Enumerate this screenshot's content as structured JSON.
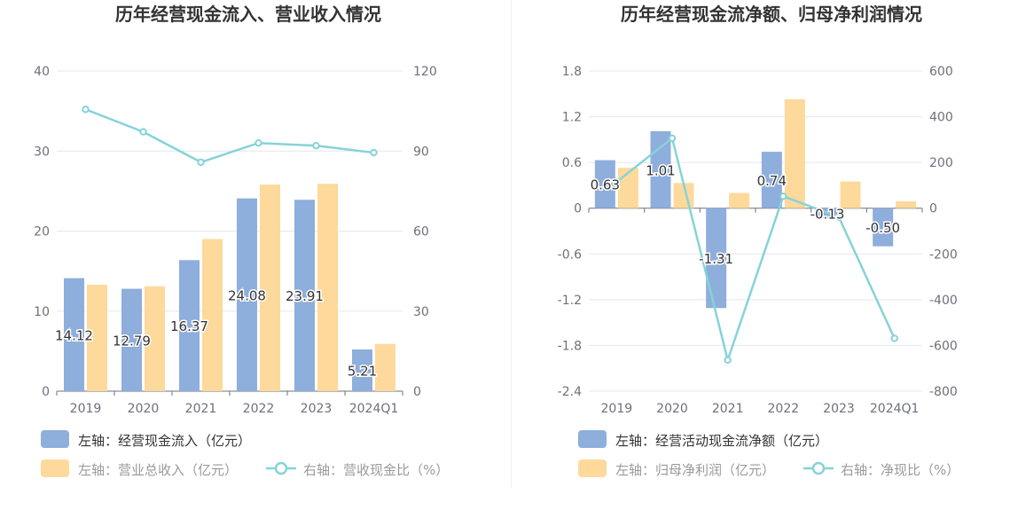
{
  "chart_data": [
    {
      "type": "bar",
      "title": "历年经营现金流入、营业收入情况",
      "categories": [
        "2019",
        "2020",
        "2021",
        "2022",
        "2023",
        "2024Q1"
      ],
      "left_axis": {
        "ticks": [
          "0",
          "10",
          "20",
          "30",
          "40"
        ],
        "min": 0,
        "max": 40
      },
      "right_axis": {
        "ticks": [
          "0",
          "30",
          "60",
          "90",
          "120"
        ],
        "min": 0,
        "max": 120
      },
      "series": [
        {
          "name": "左轴：经营现金流入（亿元）",
          "kind": "bar",
          "axis": "left",
          "color": "#8eaedc",
          "values": [
            14.12,
            12.79,
            16.37,
            24.08,
            23.91,
            5.21
          ],
          "labels": [
            "14.12",
            "12.79",
            "16.37",
            "24.08",
            "23.91",
            "5.21"
          ]
        },
        {
          "name": "左轴：营业总收入（亿元）",
          "kind": "bar",
          "axis": "left",
          "color": "#fdd99b",
          "values": [
            13.3,
            13.1,
            19.0,
            25.8,
            25.9,
            5.9
          ]
        },
        {
          "name": "右轴：营收现金比（%）",
          "kind": "line",
          "axis": "right",
          "color": "#86d3d8",
          "values": [
            105.6,
            97.2,
            85.8,
            93.0,
            92.0,
            89.4
          ]
        }
      ]
    },
    {
      "type": "bar",
      "title": "历年经营现金流净额、归母净利润情况",
      "categories": [
        "2019",
        "2020",
        "2021",
        "2022",
        "2023",
        "2024Q1"
      ],
      "left_axis": {
        "ticks": [
          "-2.4",
          "-1.8",
          "-1.2",
          "-0.6",
          "0",
          "0.6",
          "1.2",
          "1.8"
        ],
        "min": -2.4,
        "max": 1.8
      },
      "right_axis": {
        "ticks": [
          "-800",
          "-600",
          "-400",
          "-200",
          "0",
          "200",
          "400",
          "600"
        ],
        "min": -800,
        "max": 600
      },
      "series": [
        {
          "name": "左轴：经营活动现金流净额（亿元）",
          "kind": "bar",
          "axis": "left",
          "color": "#8eaedc",
          "values": [
            0.63,
            1.01,
            -1.31,
            0.74,
            -0.13,
            -0.5
          ],
          "labels": [
            "0.63",
            "1.01",
            "-1.31",
            "0.74",
            "-0.13",
            "-0.50"
          ]
        },
        {
          "name": "左轴：归母净利润（亿元）",
          "kind": "bar",
          "axis": "left",
          "color": "#fdd99b",
          "values": [
            0.53,
            0.33,
            0.2,
            1.43,
            0.35,
            0.09
          ]
        },
        {
          "name": "右轴：净现比（%）",
          "kind": "line",
          "axis": "right",
          "color": "#86d3d8",
          "values": [
            115,
            306,
            -664,
            52,
            -39,
            -569
          ]
        }
      ]
    }
  ]
}
